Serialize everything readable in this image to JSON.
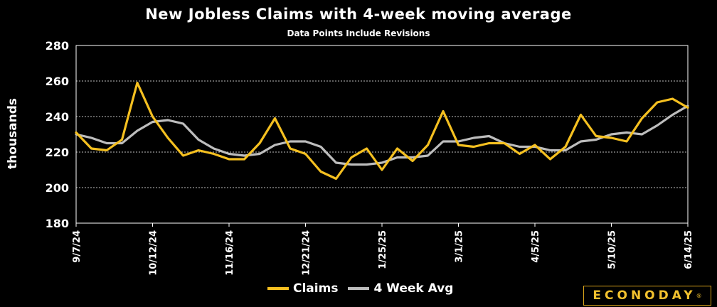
{
  "chart_data": {
    "type": "line",
    "title": "New Jobless Claims with 4-week moving average",
    "subtitle": "Data Points Include Revisions",
    "ylabel": "thousands",
    "xlabel": "",
    "ylim": [
      180,
      280
    ],
    "yticks": [
      180,
      200,
      220,
      240,
      260,
      280
    ],
    "grid": true,
    "legend_position": "bottom",
    "x": [
      "9/7/24",
      "9/14/24",
      "9/21/24",
      "9/28/24",
      "10/5/24",
      "10/12/24",
      "10/19/24",
      "10/26/24",
      "11/2/24",
      "11/9/24",
      "11/16/24",
      "11/23/24",
      "11/30/24",
      "12/7/24",
      "12/14/24",
      "12/21/24",
      "12/28/24",
      "1/4/25",
      "1/11/25",
      "1/18/25",
      "1/25/25",
      "2/1/25",
      "2/8/25",
      "2/15/25",
      "2/22/25",
      "3/1/25",
      "3/8/25",
      "3/15/25",
      "3/22/25",
      "3/29/25",
      "4/5/25",
      "4/12/25",
      "4/19/25",
      "4/26/25",
      "5/3/25",
      "5/10/25",
      "5/17/25",
      "5/24/25",
      "5/31/25",
      "6/7/25",
      "6/14/25"
    ],
    "tick_labels": [
      "9/7/24",
      "10/12/24",
      "11/16/24",
      "12/21/24",
      "1/25/25",
      "3/1/25",
      "4/5/25",
      "5/10/25",
      "6/14/25"
    ],
    "series": [
      {
        "name": "Claims",
        "color": "#f5c020",
        "values": [
          231,
          222,
          221,
          227,
          259,
          240,
          228,
          218,
          221,
          219,
          216,
          216,
          225,
          239,
          222,
          219,
          209,
          205,
          217,
          222,
          210,
          222,
          215,
          224,
          243,
          224,
          223,
          225,
          225,
          219,
          224,
          216,
          223,
          241,
          229,
          228,
          226,
          239,
          248,
          250,
          245
        ]
      },
      {
        "name": "4 Week Avg",
        "color": "#bdbdbd",
        "values": [
          230,
          228,
          225,
          225,
          232,
          237,
          238,
          236,
          227,
          222,
          219,
          218,
          219,
          224,
          226,
          226,
          223,
          214,
          213,
          213,
          214,
          217,
          217,
          218,
          226,
          226,
          228,
          229,
          225,
          223,
          223,
          221,
          221,
          226,
          227,
          230,
          231,
          230,
          235,
          241,
          246
        ]
      }
    ]
  },
  "logo": {
    "text": "ECONODAY",
    "mark": "®"
  }
}
